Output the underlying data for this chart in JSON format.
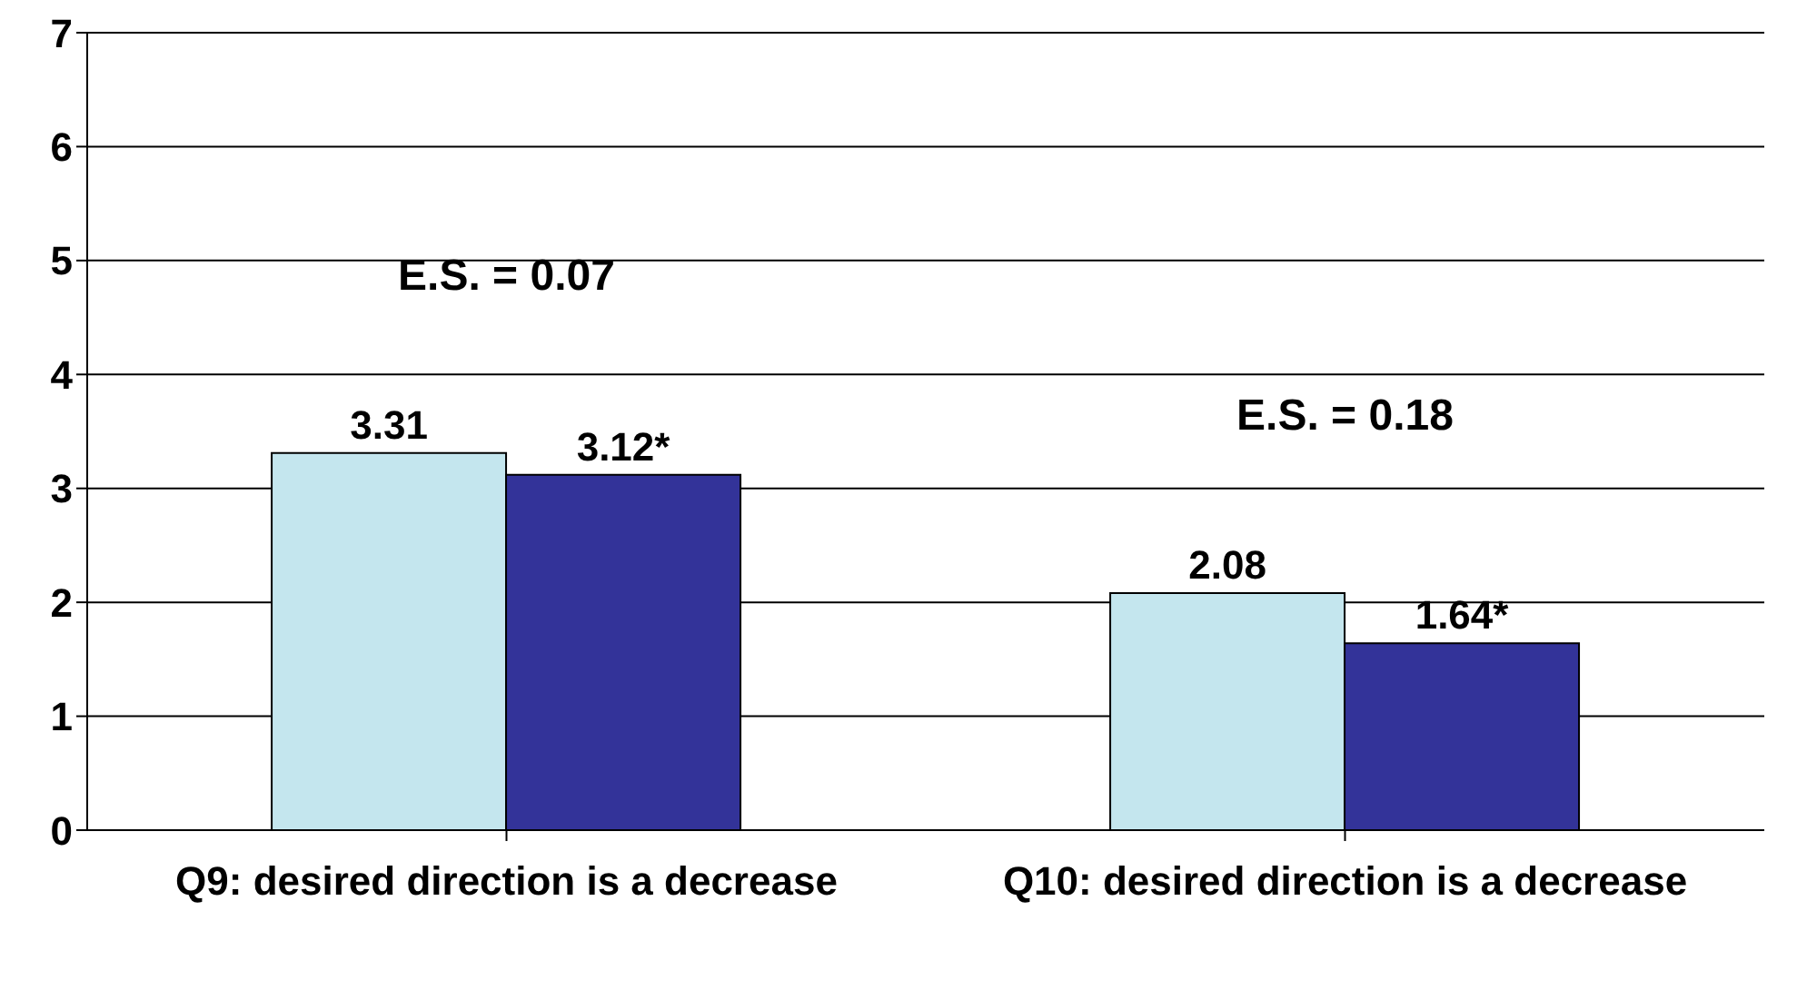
{
  "chart_data": {
    "type": "bar",
    "categories": [
      "Q9: desired direction is a decrease",
      "Q10: desired direction is a decrease"
    ],
    "series": [
      {
        "color": "#c4e6ee",
        "values": [
          3.31,
          2.08
        ],
        "value_labels": [
          "3.31",
          "2.08"
        ]
      },
      {
        "color": "#333399",
        "values": [
          3.12,
          1.64
        ],
        "value_labels": [
          "3.12*",
          "1.64*"
        ]
      }
    ],
    "ylim": [
      0,
      7
    ],
    "yticks": [
      0,
      1,
      2,
      3,
      4,
      5,
      6,
      7
    ],
    "grid": "y",
    "annotations": [
      "E.S. = 0.07",
      "E.S. = 0.18"
    ]
  }
}
